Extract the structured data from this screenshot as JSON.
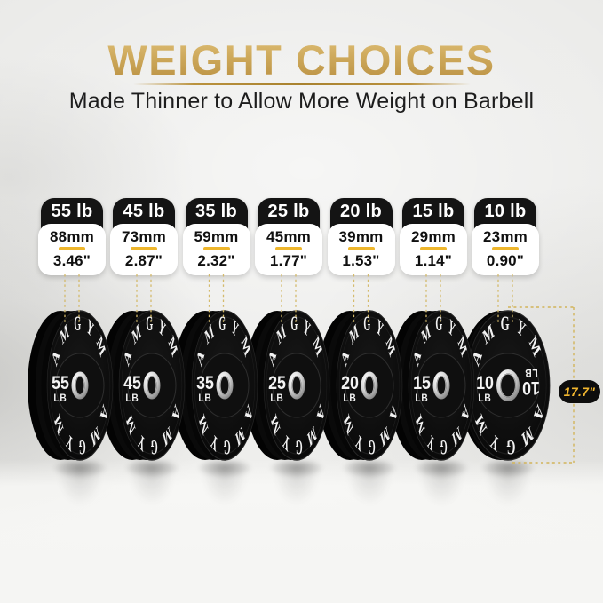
{
  "header": {
    "title": "WEIGHT CHOICES",
    "subtitle": "Made Thinner to Allow More Weight on Barbell"
  },
  "brand": "AMGYM",
  "diameter": {
    "label": "17.7\"",
    "inches": 17.7
  },
  "plates": [
    {
      "label": "55 lb",
      "mm": "88mm",
      "inch": "3.46\"",
      "weight": "55",
      "unit": "LB",
      "mm_value": 88,
      "inch_value": 3.46
    },
    {
      "label": "45 lb",
      "mm": "73mm",
      "inch": "2.87\"",
      "weight": "45",
      "unit": "LB",
      "mm_value": 73,
      "inch_value": 2.87
    },
    {
      "label": "35 lb",
      "mm": "59mm",
      "inch": "2.32\"",
      "weight": "35",
      "unit": "LB",
      "mm_value": 59,
      "inch_value": 2.32
    },
    {
      "label": "25 lb",
      "mm": "45mm",
      "inch": "1.77\"",
      "weight": "25",
      "unit": "LB",
      "mm_value": 45,
      "inch_value": 1.77
    },
    {
      "label": "20 lb",
      "mm": "39mm",
      "inch": "1.53\"",
      "weight": "20",
      "unit": "LB",
      "mm_value": 39,
      "inch_value": 1.53
    },
    {
      "label": "15 lb",
      "mm": "29mm",
      "inch": "1.14\"",
      "weight": "15",
      "unit": "LB",
      "mm_value": 29,
      "inch_value": 1.14
    },
    {
      "label": "10 lb",
      "mm": "23mm",
      "inch": "0.90\"",
      "weight": "10",
      "unit": "LB",
      "mm_value": 23,
      "inch_value": 0.9
    }
  ],
  "colors": {
    "gold_title": "#c9a24b",
    "gold_bright": "#eeb62c",
    "dash_gold": "#d4ba6b",
    "badge_text": "#f1b62f",
    "card_black": "#141414",
    "plate_black": "#0d0d0d",
    "text_dark": "#1d1d1d"
  }
}
